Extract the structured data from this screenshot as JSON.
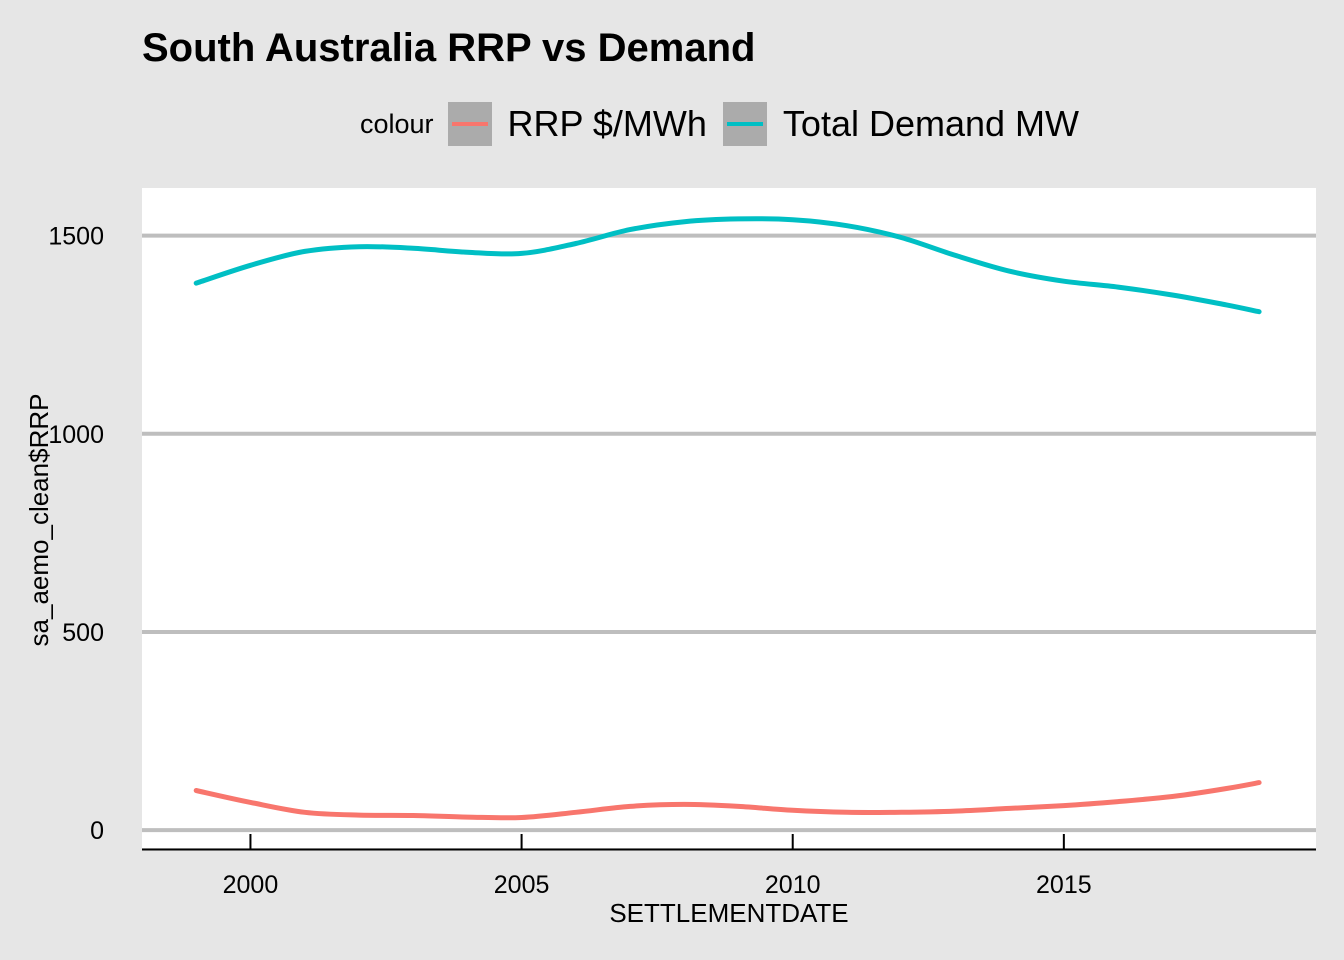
{
  "chart_data": {
    "type": "line",
    "title": "South Australia RRP vs Demand",
    "xlabel": "SETTLEMENTDATE",
    "ylabel": "sa_aemo_clean$RRP",
    "x_ticks": [
      2000,
      2005,
      2010,
      2015
    ],
    "y_ticks": [
      0,
      500,
      1000,
      1500
    ],
    "xlim": [
      1998,
      2019.65
    ],
    "ylim": [
      -45,
      1620
    ],
    "grid": "horizontal",
    "legend": {
      "title": "colour",
      "placement": "top"
    },
    "series": [
      {
        "name": "RRP $/MWh",
        "color": "#f8766d",
        "x": [
          1999.0,
          2000.0,
          2001.0,
          2002.0,
          2003.0,
          2004.0,
          2005.0,
          2006.0,
          2007.0,
          2008.0,
          2009.0,
          2010.0,
          2011.0,
          2012.0,
          2013.0,
          2014.0,
          2015.0,
          2016.0,
          2017.0,
          2018.0,
          2018.6
        ],
        "y": [
          100,
          70,
          45,
          38,
          37,
          33,
          32,
          45,
          60,
          65,
          60,
          50,
          45,
          45,
          48,
          55,
          62,
          72,
          85,
          105,
          120
        ]
      },
      {
        "name": "Total Demand MW",
        "color": "#00bfc4",
        "x": [
          1999.0,
          2000.0,
          2001.0,
          2002.0,
          2003.0,
          2004.0,
          2005.0,
          2006.0,
          2007.0,
          2008.0,
          2009.0,
          2010.0,
          2011.0,
          2012.0,
          2013.0,
          2014.0,
          2015.0,
          2016.0,
          2017.0,
          2018.0,
          2018.6
        ],
        "y": [
          1380,
          1425,
          1460,
          1472,
          1468,
          1458,
          1455,
          1480,
          1515,
          1535,
          1542,
          1540,
          1525,
          1495,
          1450,
          1410,
          1385,
          1370,
          1350,
          1325,
          1308
        ]
      }
    ]
  }
}
